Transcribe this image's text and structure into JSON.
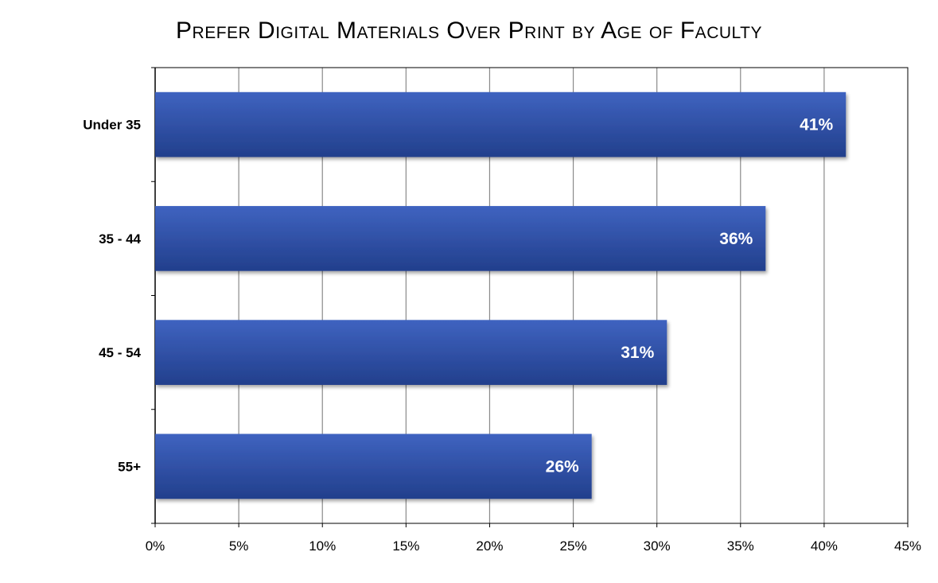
{
  "chart_data": {
    "type": "bar",
    "orientation": "horizontal",
    "title": "Prefer Digital Materials Over Print by Age of Faculty",
    "categories": [
      "Under 35",
      "35 - 44",
      "45 - 54",
      "55+"
    ],
    "values": [
      41.3,
      36.5,
      30.6,
      26.1
    ],
    "data_labels": [
      "41%",
      "36%",
      "31%",
      "26%"
    ],
    "x_ticks": [
      "0%",
      "5%",
      "10%",
      "15%",
      "20%",
      "25%",
      "30%",
      "35%",
      "40%",
      "45%"
    ],
    "xlim": [
      0,
      45
    ],
    "xlabel": "",
    "ylabel": "",
    "grid": true,
    "legend": "none",
    "bar_color_top": "#3f63c0",
    "bar_color_bottom": "#223f8c"
  }
}
